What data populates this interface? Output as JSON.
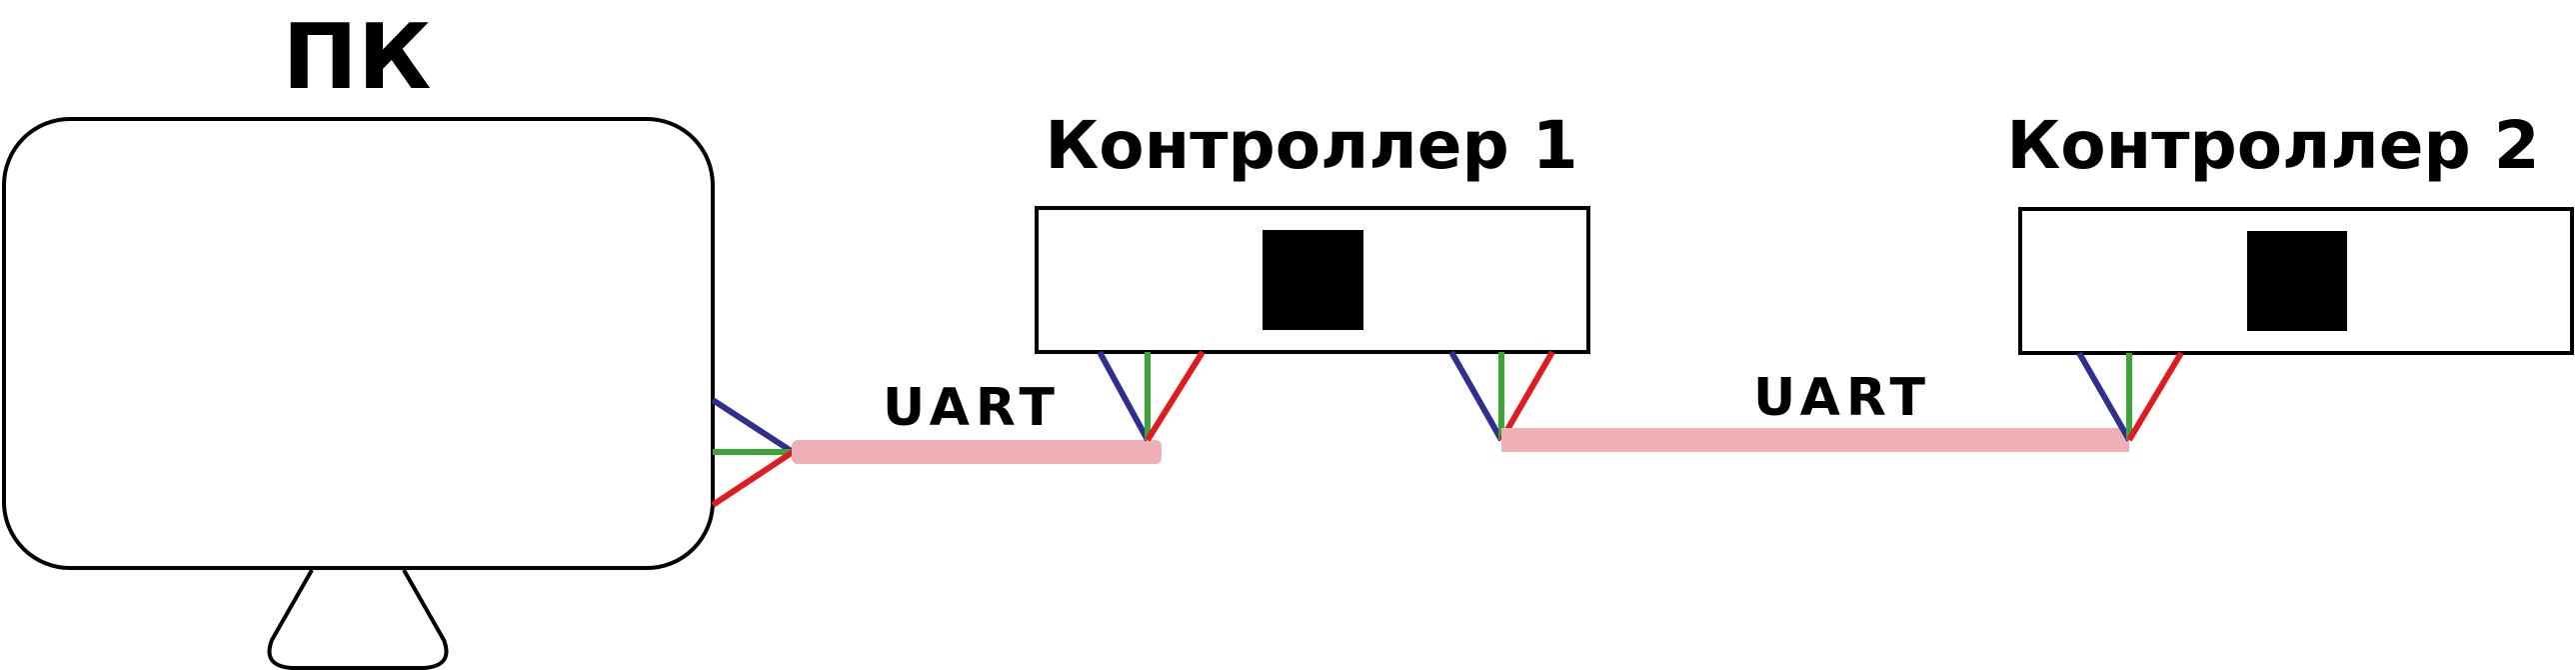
{
  "pc": {
    "label": "ПК"
  },
  "controllers": [
    {
      "label": "Контроллер 1"
    },
    {
      "label": "Контроллер 2"
    }
  ],
  "links": [
    {
      "label": "UART"
    },
    {
      "label": "UART"
    }
  ],
  "colors": {
    "bus": "#eeb0b6",
    "wire_blue": "#2e2f8e",
    "wire_green": "#3aa635",
    "wire_red": "#e01b1f",
    "outline": "#000000",
    "chip": "#000000"
  }
}
